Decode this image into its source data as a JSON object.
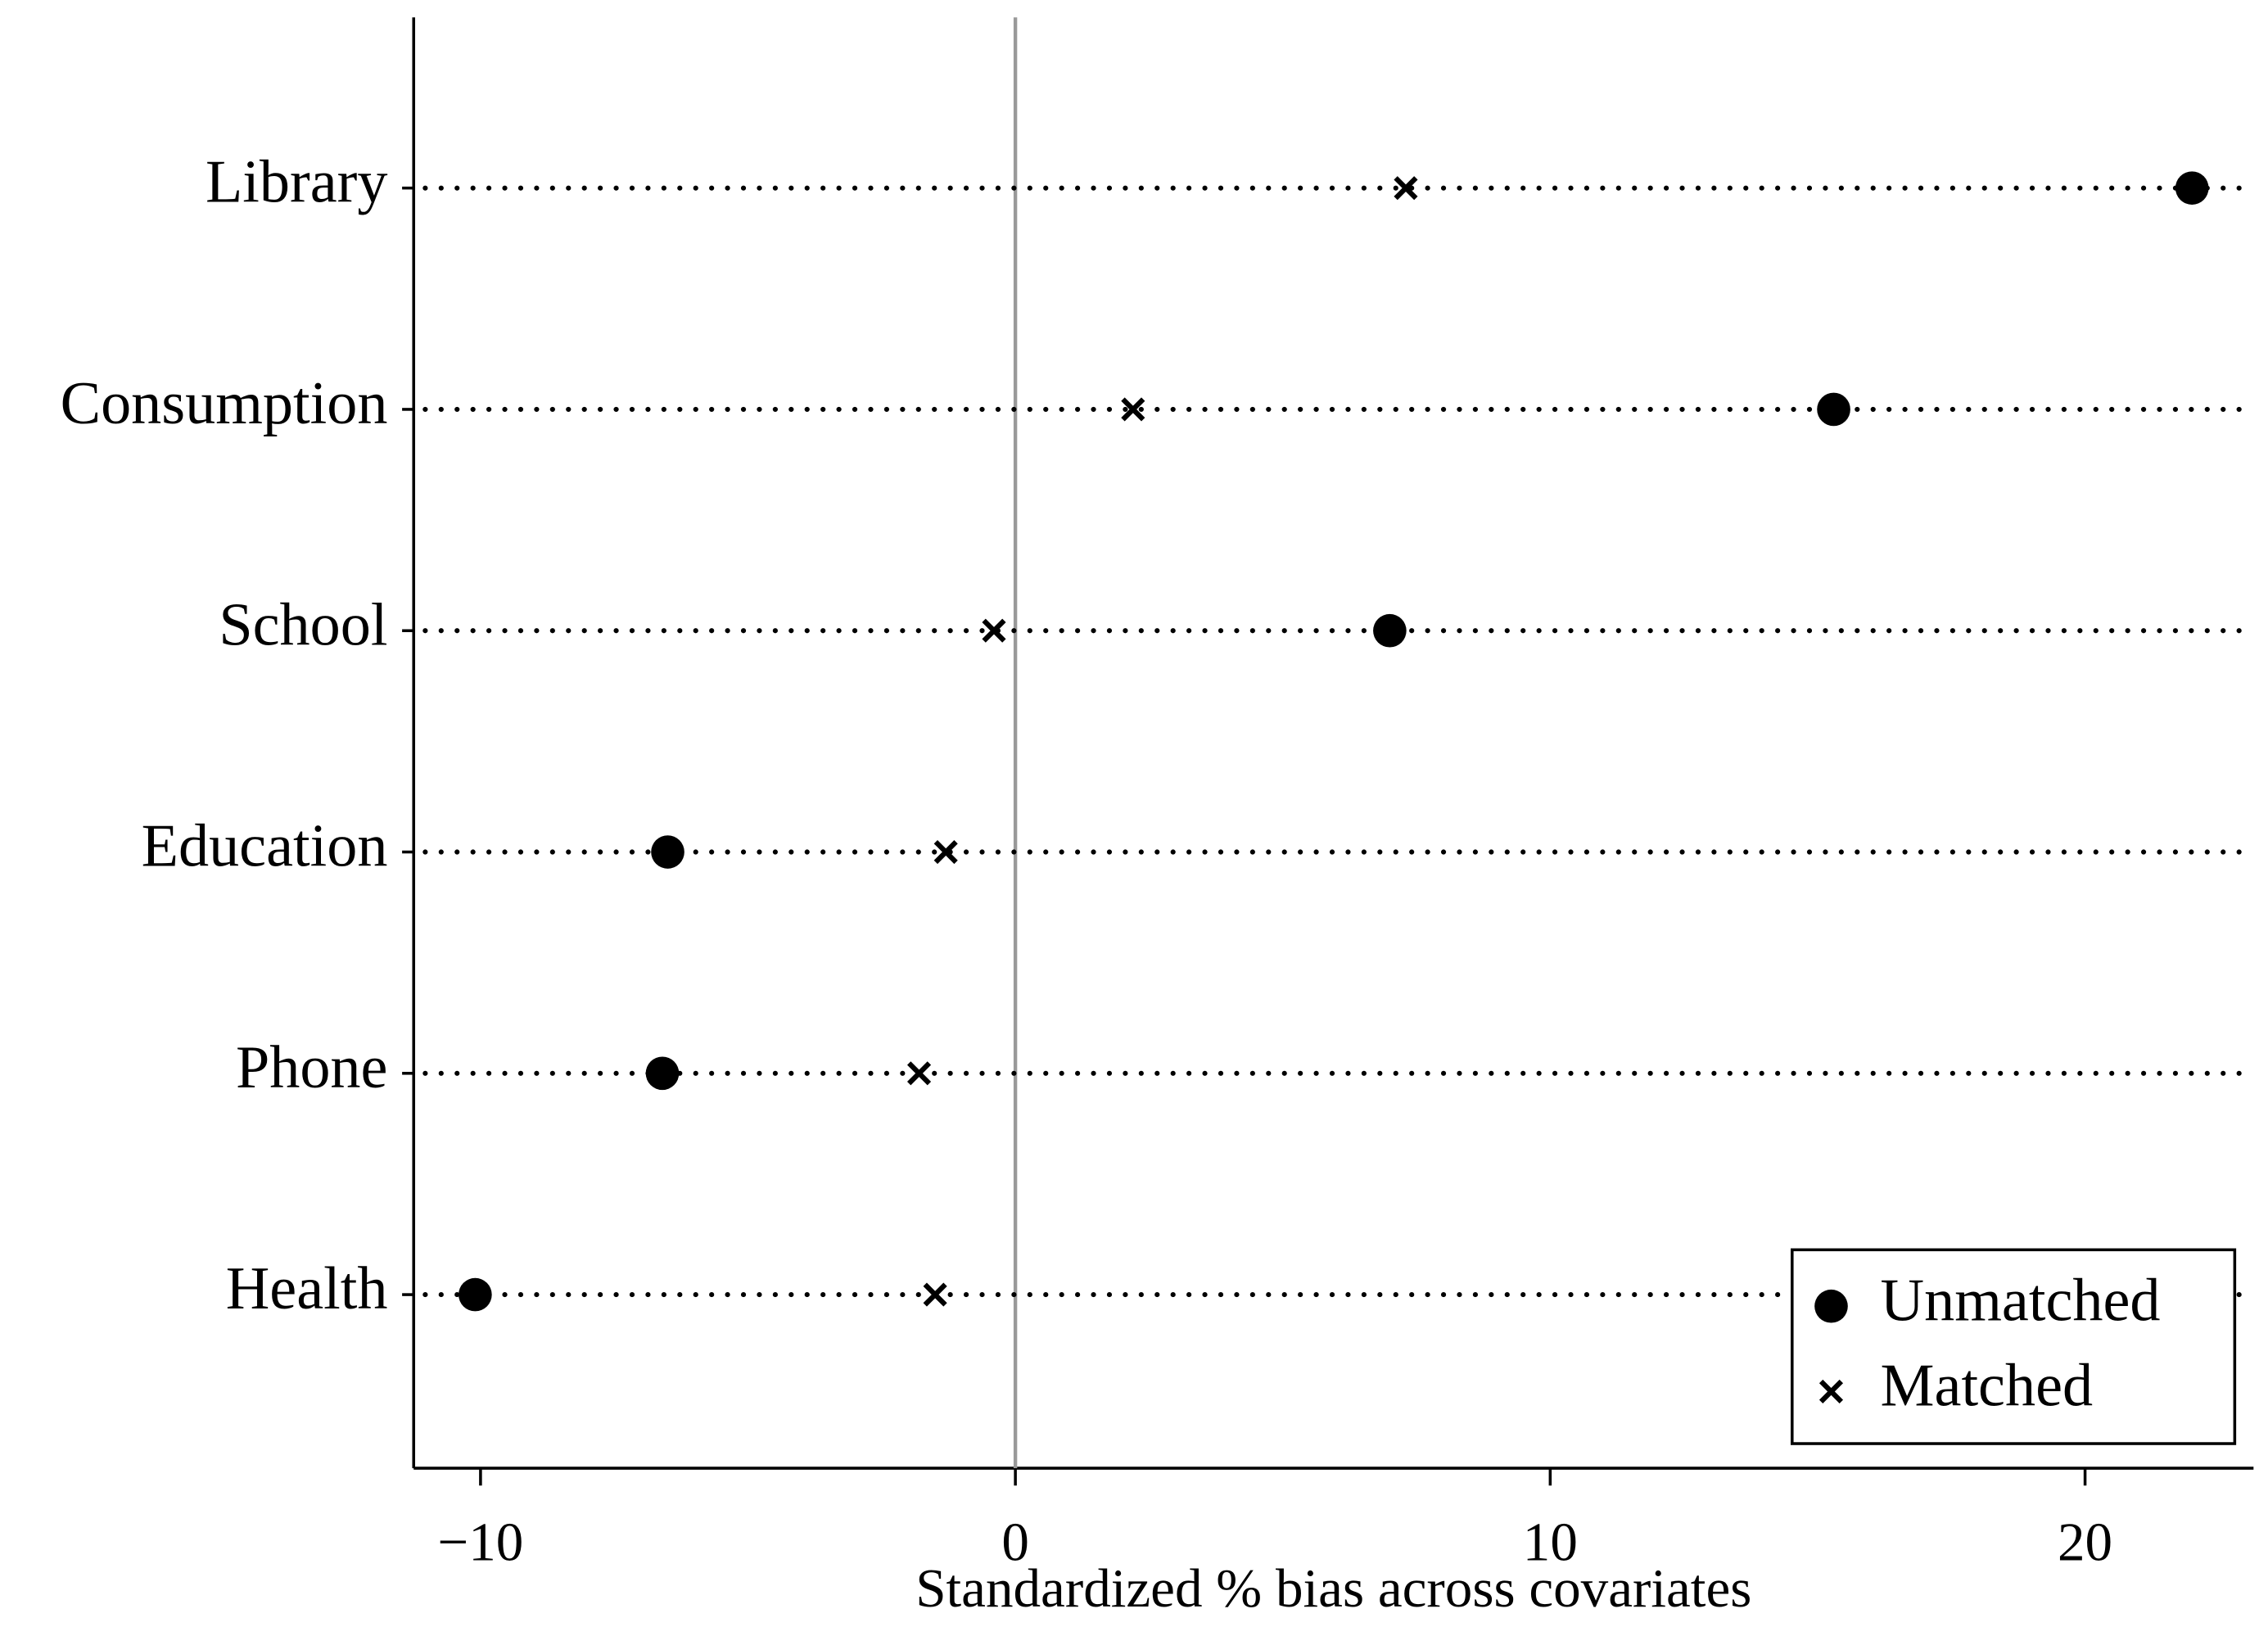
{
  "chart_data": {
    "type": "dot",
    "xlabel": "Standardized % bias across covariates",
    "categories": [
      "Library",
      "Consumption",
      "School",
      "Education",
      "Phone",
      "Health"
    ],
    "series": [
      {
        "name": "Unmatched",
        "color": "#000000",
        "marker": "circle",
        "values": [
          22.0,
          15.3,
          7.0,
          -6.5,
          -6.6,
          -10.1
        ]
      },
      {
        "name": "Matched",
        "color": "#000000",
        "marker": "x",
        "values": [
          7.3,
          2.2,
          -0.4,
          -1.3,
          -1.8,
          -1.5
        ]
      }
    ],
    "xlim": [
      -11.25,
      23.15
    ],
    "xticks": [
      {
        "value": -10,
        "label": "−10"
      },
      0,
      10,
      20
    ],
    "xline": 0,
    "legend": "lower right"
  }
}
